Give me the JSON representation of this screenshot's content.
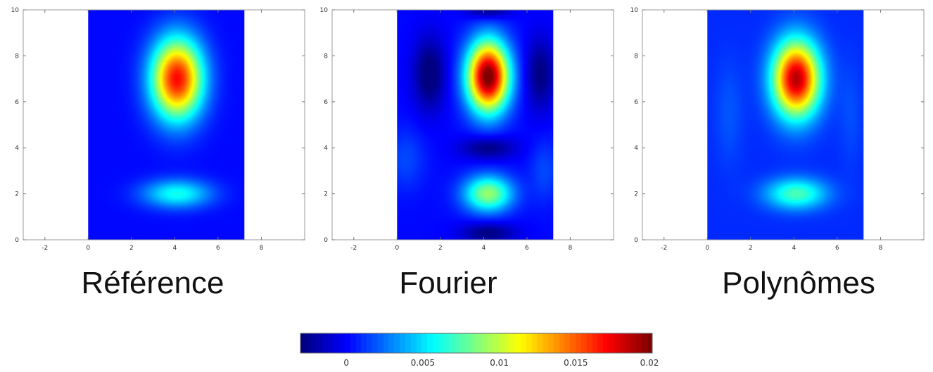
{
  "figure": {
    "colormap": "jet",
    "color_range": [
      -0.003,
      0.02
    ]
  },
  "chart_data": [
    {
      "type": "heatmap",
      "title": "Référence",
      "xlim": [
        -3,
        10
      ],
      "ylim": [
        0,
        10
      ],
      "xticks": [
        -2,
        0,
        2,
        4,
        6,
        8
      ],
      "yticks": [
        0,
        2,
        4,
        6,
        8,
        10
      ],
      "domain_x": [
        0,
        7.2
      ],
      "domain_y": [
        0,
        10
      ],
      "background_value": 0.0,
      "blobs": [
        {
          "cx": 4.1,
          "cy": 7.0,
          "sx": 1.05,
          "sy": 1.55,
          "amp": 0.017
        },
        {
          "cx": 4.1,
          "cy": 2.0,
          "sx": 1.4,
          "sy": 0.55,
          "amp": 0.006
        }
      ],
      "peak_value": 0.017
    },
    {
      "type": "heatmap",
      "title": "Fourier",
      "xlim": [
        -3,
        10
      ],
      "ylim": [
        0,
        10
      ],
      "xticks": [
        -2,
        0,
        2,
        4,
        6,
        8
      ],
      "yticks": [
        0,
        2,
        4,
        6,
        8,
        10
      ],
      "domain_x": [
        0,
        7.2
      ],
      "domain_y": [
        0,
        10
      ],
      "background_value": 0.0,
      "blobs": [
        {
          "cx": 4.2,
          "cy": 7.1,
          "sx": 0.85,
          "sy": 1.35,
          "amp": 0.0205
        },
        {
          "cx": 4.2,
          "cy": 2.0,
          "sx": 1.0,
          "sy": 0.7,
          "amp": 0.009
        },
        {
          "cx": 1.5,
          "cy": 7.2,
          "sx": 0.65,
          "sy": 1.4,
          "amp": -0.0035
        },
        {
          "cx": 6.6,
          "cy": 7.2,
          "sx": 0.6,
          "sy": 1.4,
          "amp": -0.003
        },
        {
          "cx": 4.2,
          "cy": 4.0,
          "sx": 1.1,
          "sy": 0.45,
          "amp": -0.003
        },
        {
          "cx": 4.2,
          "cy": 0.3,
          "sx": 1.1,
          "sy": 0.4,
          "amp": -0.003
        },
        {
          "cx": 4.2,
          "cy": 10.0,
          "sx": 0.9,
          "sy": 0.35,
          "amp": -0.003
        },
        {
          "cx": 0.4,
          "cy": 3.5,
          "sx": 0.8,
          "sy": 1.2,
          "amp": 0.0015
        },
        {
          "cx": 6.8,
          "cy": 3.0,
          "sx": 0.6,
          "sy": 1.2,
          "amp": 0.0015
        }
      ],
      "peak_value": 0.0205
    },
    {
      "type": "heatmap",
      "title": "Polynômes",
      "xlim": [
        -3,
        10
      ],
      "ylim": [
        0,
        10
      ],
      "xticks": [
        -2,
        0,
        2,
        4,
        6,
        8
      ],
      "yticks": [
        0,
        2,
        4,
        6,
        8,
        10
      ],
      "domain_x": [
        0,
        7.2
      ],
      "domain_y": [
        0,
        10
      ],
      "background_value": 0.0008,
      "blobs": [
        {
          "cx": 4.1,
          "cy": 7.0,
          "sx": 0.95,
          "sy": 1.45,
          "amp": 0.018
        },
        {
          "cx": 4.1,
          "cy": 2.0,
          "sx": 1.25,
          "sy": 0.6,
          "amp": 0.0065
        },
        {
          "cx": 1.0,
          "cy": 5.5,
          "sx": 0.6,
          "sy": 2.0,
          "amp": 0.001
        },
        {
          "cx": 6.6,
          "cy": 5.5,
          "sx": 0.5,
          "sy": 2.0,
          "amp": 0.0008
        }
      ],
      "peak_value": 0.018
    }
  ],
  "colorbar": {
    "ticks": [
      0,
      0.005,
      0.01,
      0.015,
      0.02
    ],
    "tick_labels": [
      "0",
      "0.005",
      "0.01",
      "0.015",
      "0.02"
    ],
    "range": [
      -0.003,
      0.02
    ]
  }
}
